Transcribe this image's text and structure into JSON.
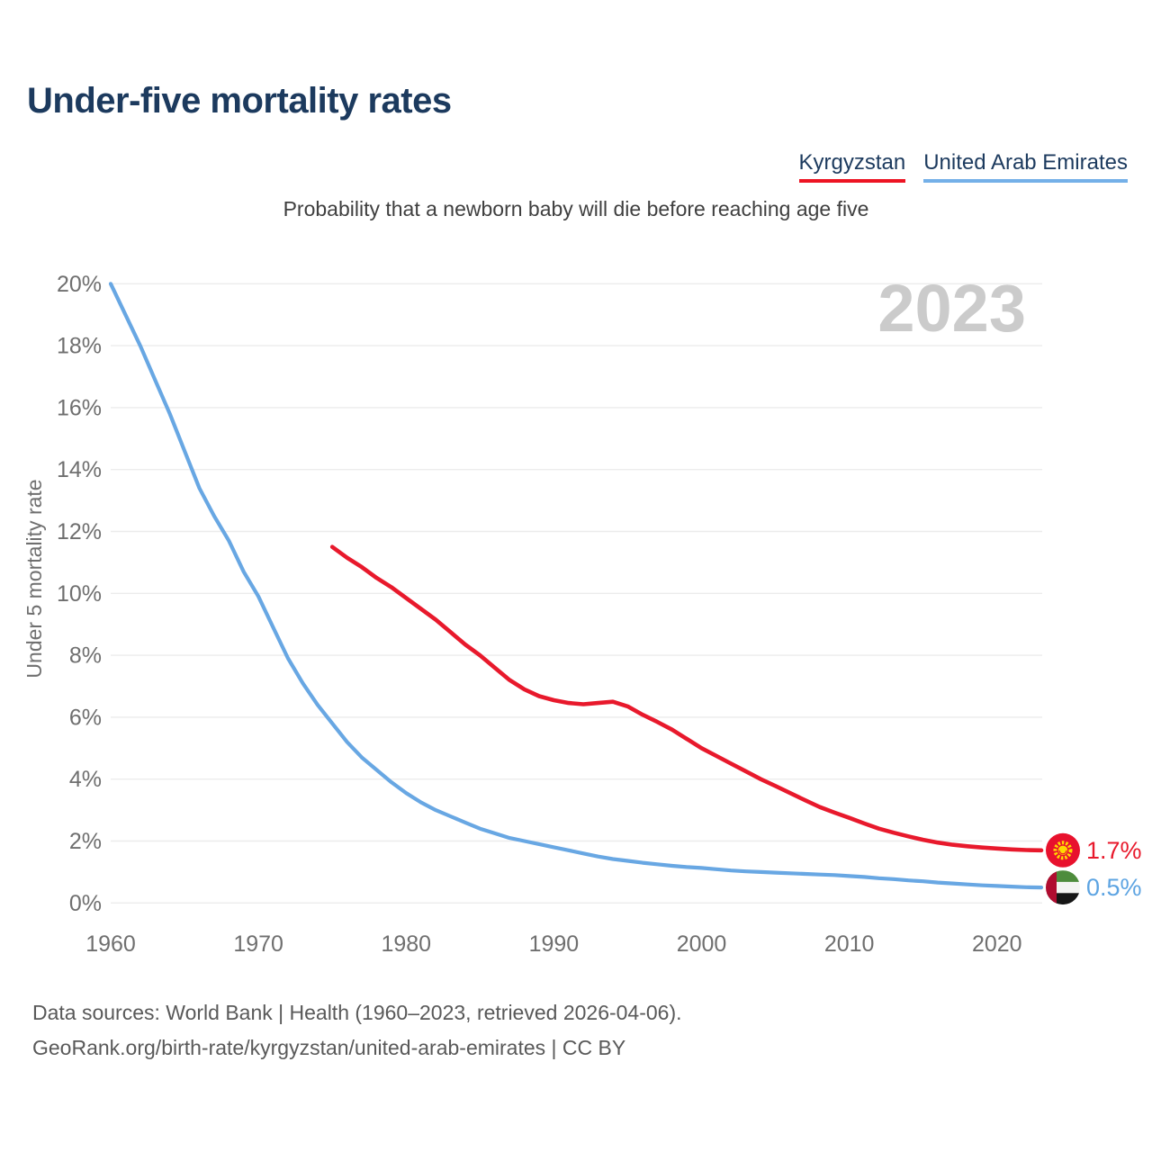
{
  "header": {
    "title": "Under-five mortality rates",
    "subtitle": "Probability that a newborn baby will die before reaching age five"
  },
  "legend": {
    "items": [
      {
        "label": "Kyrgyzstan",
        "color": "#ed1423"
      },
      {
        "label": "United Arab Emirates",
        "color": "#74b0e8"
      }
    ]
  },
  "chart_data": {
    "type": "line",
    "title": "Under-five mortality rates",
    "subtitle": "Probability that a newborn baby will die before reaching age five",
    "watermark": "2023",
    "ylabel": "Under 5 mortality rate",
    "xlabel": "",
    "xlim": [
      1960,
      2023
    ],
    "ylim": [
      0,
      20
    ],
    "grid": "horizontal",
    "legend_position": "top-right",
    "x_ticks": [
      1960,
      1970,
      1980,
      1990,
      2000,
      2010,
      2020
    ],
    "y_ticks": [
      0,
      2,
      4,
      6,
      8,
      10,
      12,
      14,
      16,
      18,
      20
    ],
    "y_tick_suffix": "%",
    "series": [
      {
        "name": "Kyrgyzstan",
        "color": "#e8192c",
        "end_label": "1.7%",
        "flag": "kyrgyzstan-flag",
        "points": [
          [
            1975,
            11.5
          ],
          [
            1976,
            11.15
          ],
          [
            1977,
            10.85
          ],
          [
            1978,
            10.5
          ],
          [
            1979,
            10.2
          ],
          [
            1980,
            9.85
          ],
          [
            1981,
            9.5
          ],
          [
            1982,
            9.15
          ],
          [
            1983,
            8.75
          ],
          [
            1984,
            8.35
          ],
          [
            1985,
            8.0
          ],
          [
            1986,
            7.6
          ],
          [
            1987,
            7.2
          ],
          [
            1988,
            6.9
          ],
          [
            1989,
            6.68
          ],
          [
            1990,
            6.55
          ],
          [
            1991,
            6.46
          ],
          [
            1992,
            6.42
          ],
          [
            1993,
            6.46
          ],
          [
            1994,
            6.5
          ],
          [
            1995,
            6.35
          ],
          [
            1996,
            6.08
          ],
          [
            1997,
            5.85
          ],
          [
            1998,
            5.6
          ],
          [
            1999,
            5.3
          ],
          [
            2000,
            5.0
          ],
          [
            2001,
            4.75
          ],
          [
            2002,
            4.5
          ],
          [
            2003,
            4.25
          ],
          [
            2004,
            4.0
          ],
          [
            2005,
            3.78
          ],
          [
            2006,
            3.55
          ],
          [
            2007,
            3.32
          ],
          [
            2008,
            3.1
          ],
          [
            2009,
            2.92
          ],
          [
            2010,
            2.75
          ],
          [
            2011,
            2.57
          ],
          [
            2012,
            2.4
          ],
          [
            2013,
            2.27
          ],
          [
            2014,
            2.15
          ],
          [
            2015,
            2.04
          ],
          [
            2016,
            1.95
          ],
          [
            2017,
            1.88
          ],
          [
            2018,
            1.83
          ],
          [
            2019,
            1.79
          ],
          [
            2020,
            1.76
          ],
          [
            2021,
            1.73
          ],
          [
            2022,
            1.71
          ],
          [
            2023,
            1.7
          ]
        ]
      },
      {
        "name": "United Arab Emirates",
        "color": "#68a7e3",
        "end_label": "0.5%",
        "flag": "uae-flag",
        "points": [
          [
            1960,
            20.0
          ],
          [
            1961,
            19.0
          ],
          [
            1962,
            18.0
          ],
          [
            1963,
            16.9
          ],
          [
            1964,
            15.8
          ],
          [
            1965,
            14.6
          ],
          [
            1966,
            13.4
          ],
          [
            1967,
            12.5
          ],
          [
            1968,
            11.7
          ],
          [
            1969,
            10.7
          ],
          [
            1970,
            9.9
          ],
          [
            1971,
            8.9
          ],
          [
            1972,
            7.9
          ],
          [
            1973,
            7.1
          ],
          [
            1974,
            6.4
          ],
          [
            1975,
            5.8
          ],
          [
            1976,
            5.2
          ],
          [
            1977,
            4.7
          ],
          [
            1978,
            4.3
          ],
          [
            1979,
            3.9
          ],
          [
            1980,
            3.55
          ],
          [
            1981,
            3.25
          ],
          [
            1982,
            3.0
          ],
          [
            1983,
            2.8
          ],
          [
            1984,
            2.6
          ],
          [
            1985,
            2.4
          ],
          [
            1986,
            2.25
          ],
          [
            1987,
            2.1
          ],
          [
            1988,
            2.0
          ],
          [
            1989,
            1.9
          ],
          [
            1990,
            1.8
          ],
          [
            1991,
            1.7
          ],
          [
            1992,
            1.6
          ],
          [
            1993,
            1.5
          ],
          [
            1994,
            1.42
          ],
          [
            1995,
            1.36
          ],
          [
            1996,
            1.3
          ],
          [
            1997,
            1.25
          ],
          [
            1998,
            1.2
          ],
          [
            1999,
            1.16
          ],
          [
            2000,
            1.13
          ],
          [
            2001,
            1.09
          ],
          [
            2002,
            1.05
          ],
          [
            2003,
            1.02
          ],
          [
            2004,
            1.0
          ],
          [
            2005,
            0.98
          ],
          [
            2006,
            0.96
          ],
          [
            2007,
            0.94
          ],
          [
            2008,
            0.92
          ],
          [
            2009,
            0.9
          ],
          [
            2010,
            0.87
          ],
          [
            2011,
            0.84
          ],
          [
            2012,
            0.8
          ],
          [
            2013,
            0.77
          ],
          [
            2014,
            0.73
          ],
          [
            2015,
            0.7
          ],
          [
            2016,
            0.66
          ],
          [
            2017,
            0.63
          ],
          [
            2018,
            0.6
          ],
          [
            2019,
            0.57
          ],
          [
            2020,
            0.55
          ],
          [
            2021,
            0.53
          ],
          [
            2022,
            0.51
          ],
          [
            2023,
            0.5
          ]
        ]
      }
    ],
    "colors": {
      "grid": "#ececec",
      "axis_text": "#6f6f6f",
      "watermark": "#cbcbcb",
      "title_navy": "#1c3a5e"
    }
  },
  "footer": {
    "line1": "Data sources: World Bank | Health (1960–2023, retrieved 2026-04-06).",
    "line2": "GeoRank.org/birth-rate/kyrgyzstan/united-arab-emirates | CC BY"
  }
}
